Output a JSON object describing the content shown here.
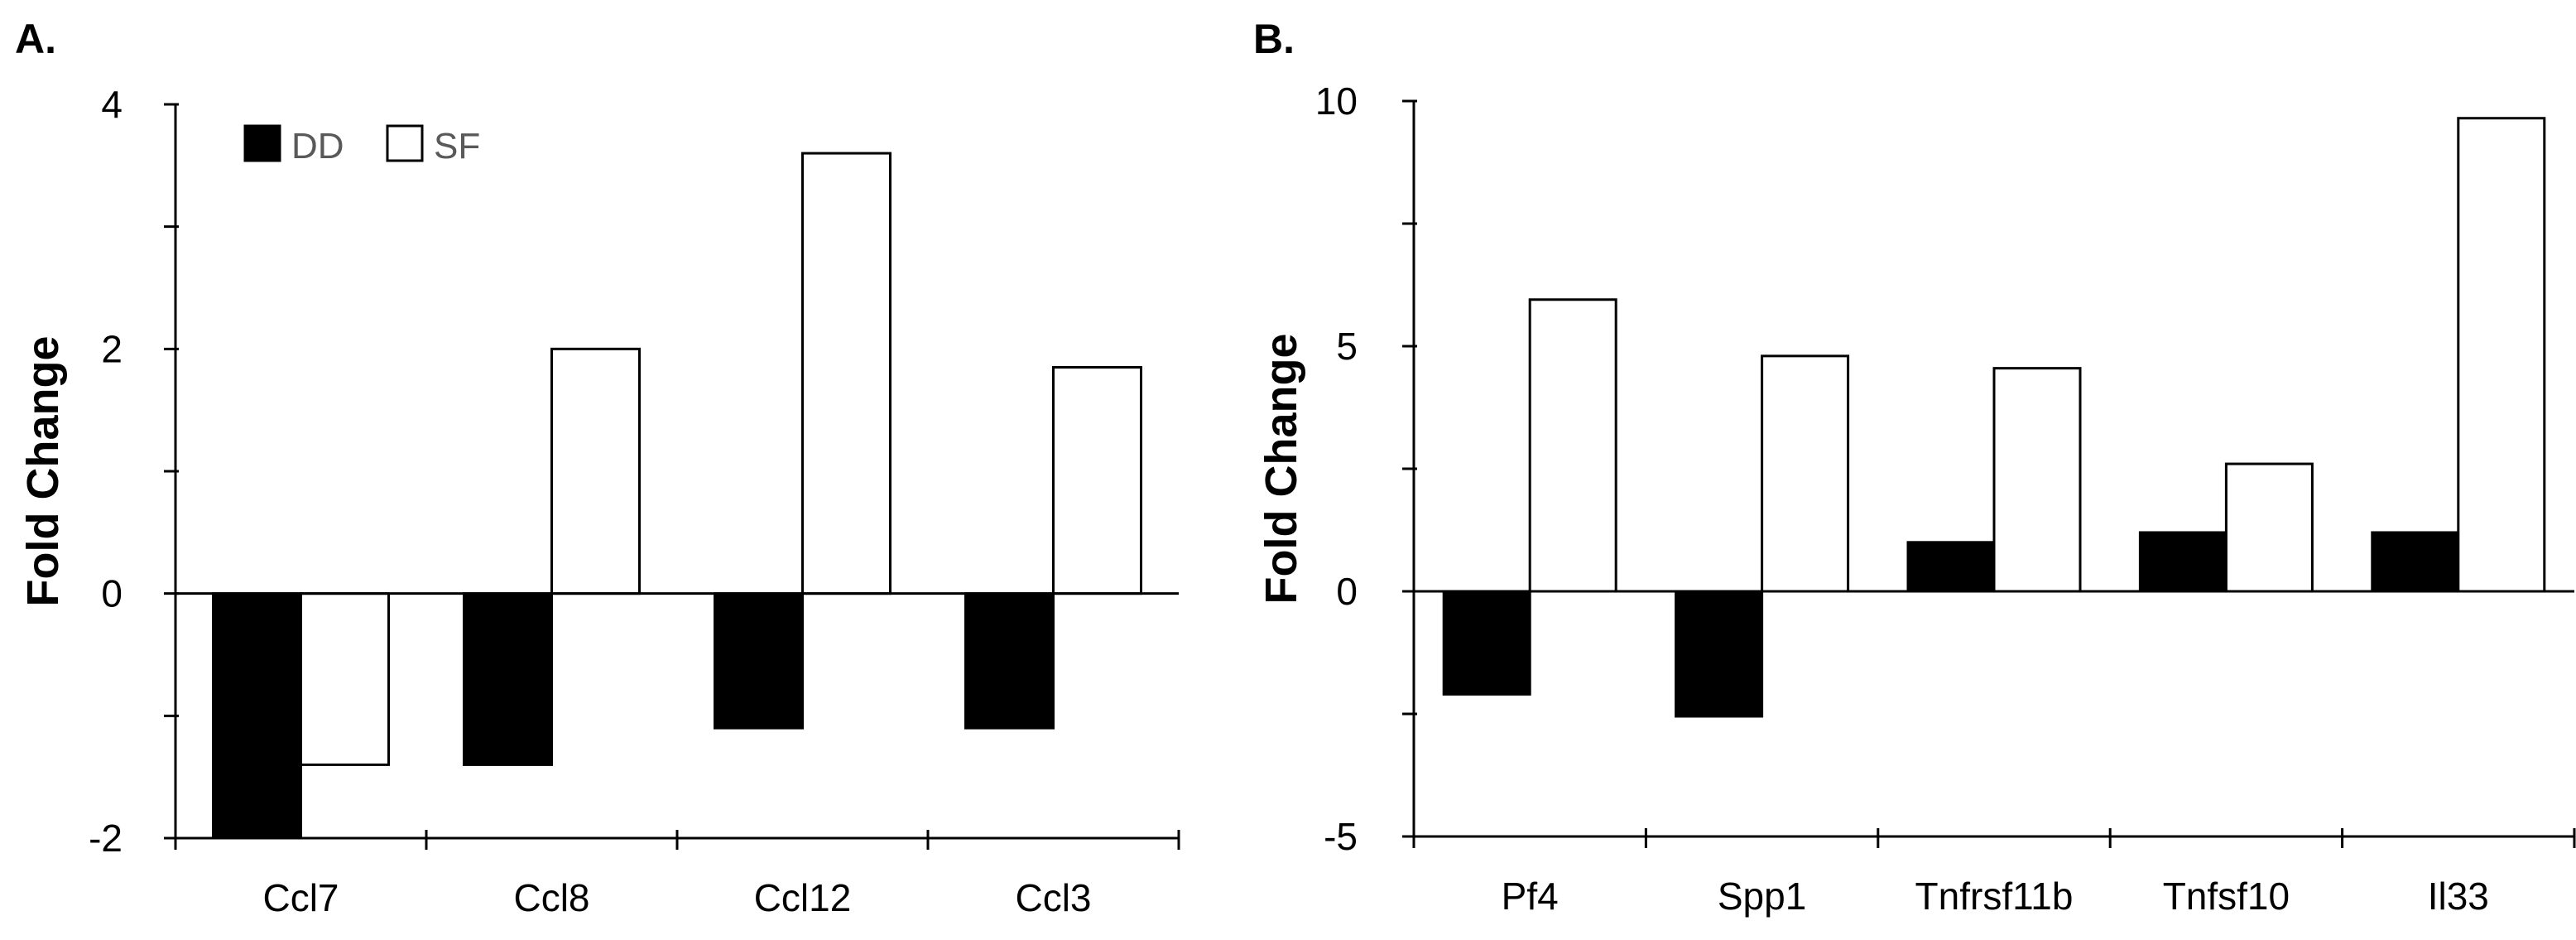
{
  "colors": {
    "dd_fill": "#000000",
    "sf_fill": "#ffffff",
    "stroke": "#000000"
  },
  "legend": [
    {
      "name": "DD",
      "color": "#000000"
    },
    {
      "name": "SF",
      "color": "#ffffff"
    }
  ],
  "chart_data": [
    {
      "type": "bar",
      "panel": "A.",
      "ylabel": "Fold Change",
      "xlabel": "",
      "ylim": [
        -2,
        4
      ],
      "yticks": [
        -2,
        0,
        2,
        4
      ],
      "categories": [
        "Ccl7",
        "Ccl8",
        "Ccl12",
        "Ccl3"
      ],
      "series": [
        {
          "name": "DD",
          "values": [
            -2.0,
            -1.4,
            -1.1,
            -1.1
          ]
        },
        {
          "name": "SF",
          "values": [
            -1.4,
            2.0,
            3.6,
            1.85
          ]
        }
      ],
      "legend_position": "top-left",
      "grid": false
    },
    {
      "type": "bar",
      "panel": "B.",
      "ylabel": "Fold Change",
      "xlabel": "",
      "ylim": [
        -5,
        10
      ],
      "yticks": [
        -5,
        0,
        5,
        10
      ],
      "categories": [
        "Pf4",
        "Spp1",
        "Tnfrsf11b",
        "Tnfsf10",
        "Il33"
      ],
      "series": [
        {
          "name": "DD",
          "values": [
            -2.1,
            -2.55,
            1.0,
            1.2,
            1.2
          ]
        },
        {
          "name": "SF",
          "values": [
            5.95,
            4.8,
            4.55,
            2.6,
            9.65
          ]
        }
      ],
      "legend_position": "none",
      "grid": false
    }
  ]
}
